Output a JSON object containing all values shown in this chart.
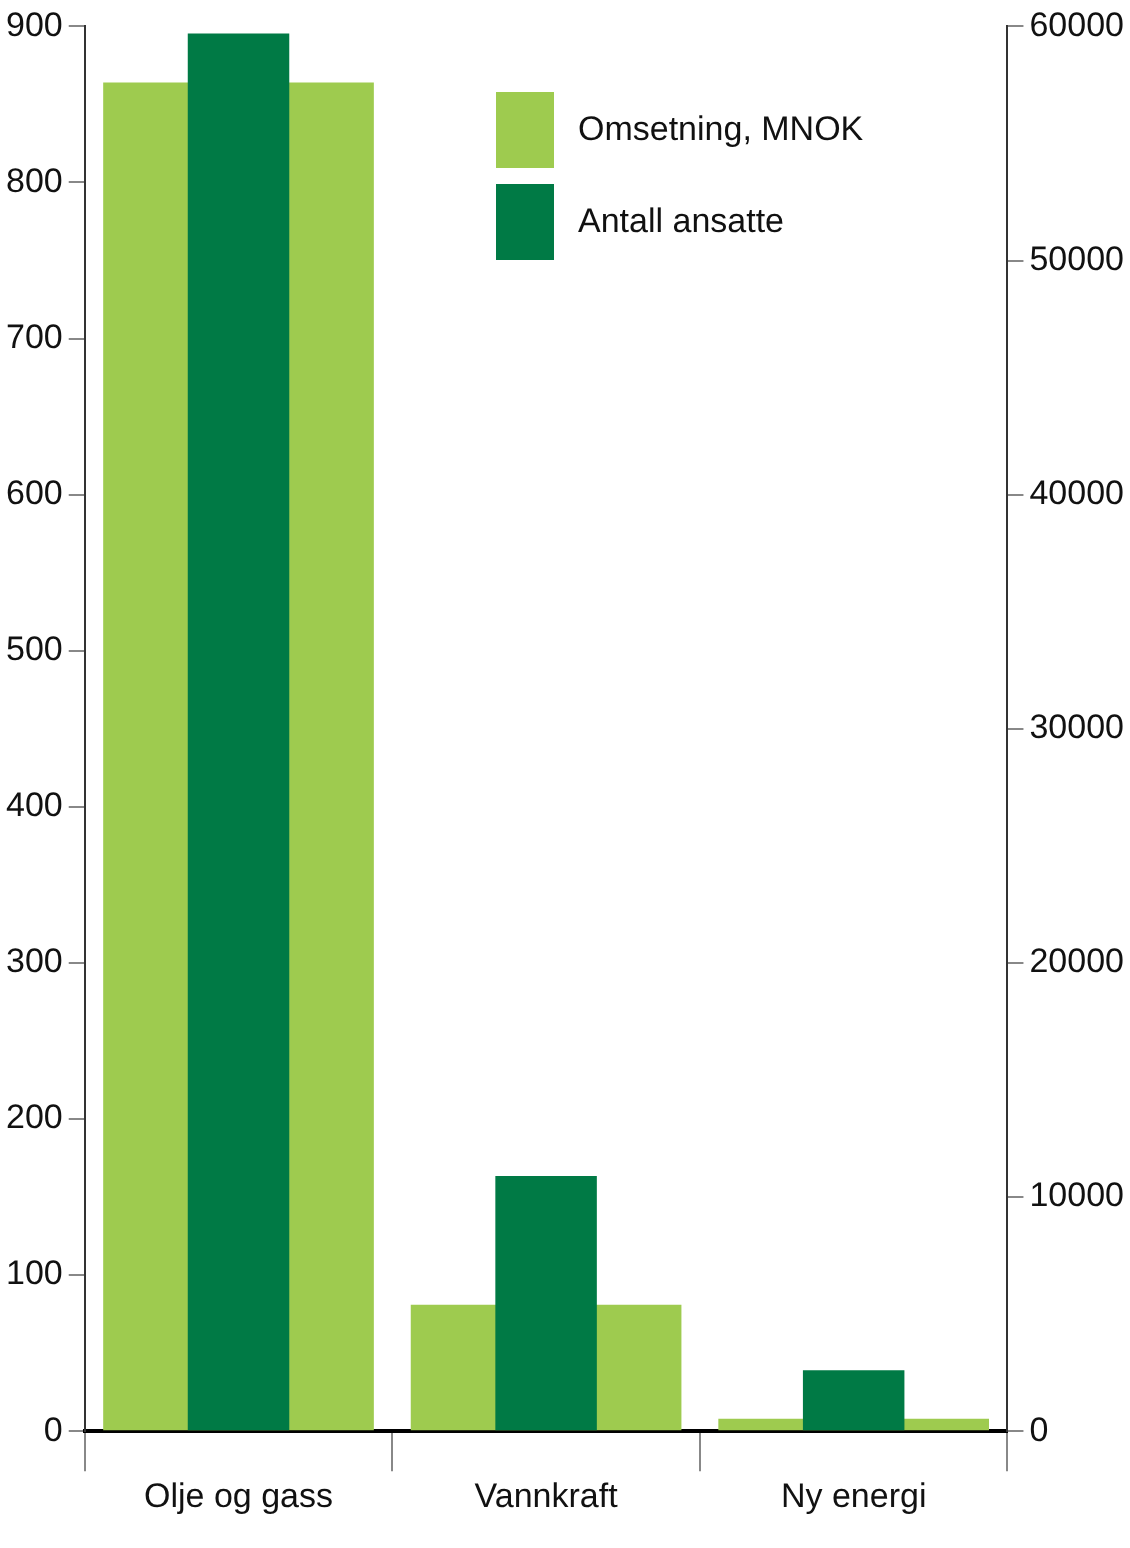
{
  "chart_data": {
    "type": "bar",
    "categories": [
      "Olje og gass",
      "Vannkraft",
      "Ny energi"
    ],
    "series": [
      {
        "name": "Omsetning, MNOK",
        "color": "#9ecb4f",
        "values": [
          864,
          81,
          8
        ],
        "axis": "y"
      },
      {
        "name": "Antall ansatte",
        "color": "#007a45",
        "values": [
          59700,
          10900,
          2600
        ],
        "axis": "y2"
      }
    ],
    "ylim": [
      0,
      900
    ],
    "yticks": [
      0,
      100,
      200,
      300,
      400,
      500,
      600,
      700,
      800,
      900
    ],
    "y2lim": [
      0,
      60000
    ],
    "y2ticks": [
      0,
      10000,
      20000,
      30000,
      40000,
      50000,
      60000
    ],
    "grid": false,
    "legend": "top right"
  }
}
